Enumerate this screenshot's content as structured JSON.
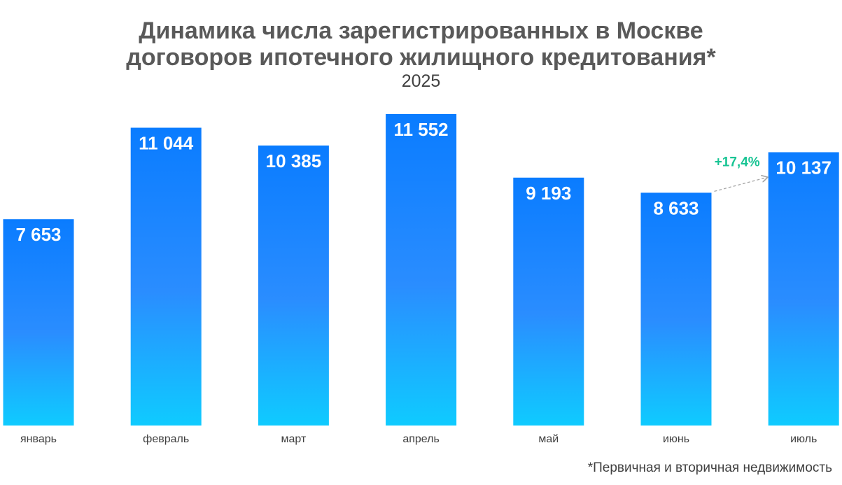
{
  "chart_data": {
    "type": "bar",
    "title_line1": "Динамика числа зарегистрированных в Москве",
    "title_line2": "договоров ипотечного жилищного кредитования*",
    "subtitle": "2025",
    "categories": [
      "январь",
      "февраль",
      "март",
      "апрель",
      "май",
      "июнь",
      "июль"
    ],
    "values": [
      7653,
      11044,
      10385,
      11552,
      9193,
      8633,
      10137
    ],
    "value_labels": [
      "7 653",
      "11 044",
      "10 385",
      "11 552",
      "9 193",
      "8 633",
      "10 137"
    ],
    "ylim": [
      0,
      12200
    ],
    "grid": false,
    "legend": "none",
    "annotations": [
      {
        "text": "+17,4%",
        "from": "июнь",
        "to": "июль",
        "color": "#19c494"
      }
    ],
    "footnote": "*Первичная и вторичная недвижимость",
    "colors": {
      "bar_top": "#0a7cff",
      "bar_bottom": "#0fcbff",
      "title": "#595959"
    }
  }
}
